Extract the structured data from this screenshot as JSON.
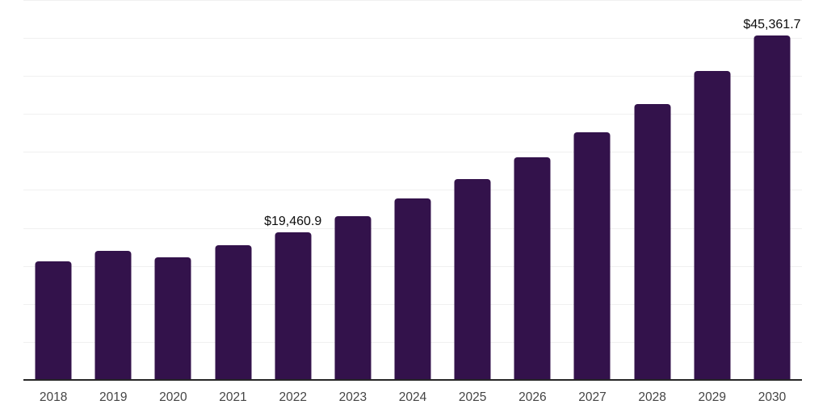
{
  "chart_data": {
    "type": "bar",
    "title": "",
    "xlabel": "",
    "ylabel": "",
    "categories": [
      "2018",
      "2019",
      "2020",
      "2021",
      "2022",
      "2023",
      "2024",
      "2025",
      "2026",
      "2027",
      "2028",
      "2029",
      "2030"
    ],
    "values": [
      15600,
      17000,
      16100,
      17700,
      19460.9,
      21600,
      23900,
      26450,
      29300,
      32600,
      36300,
      40650,
      45361.7
    ],
    "labeled_points": [
      {
        "index": 4,
        "category": "2022",
        "text": "$19,460.9",
        "value": 19460.9
      },
      {
        "index": 12,
        "category": "2030",
        "text": "$45,361.7",
        "value": 45361.7
      }
    ],
    "ylim": [
      0,
      50000
    ],
    "gridline_step": 5000,
    "grid": true,
    "legend_position": "none",
    "y_axis_labels_visible": false,
    "colors": {
      "bar": "#33124B",
      "gridline": "#F0F0F0",
      "axis_line": "#262626",
      "tick_label": "#444444",
      "data_label": "#0D0D0D",
      "background": "#FFFFFF"
    }
  }
}
